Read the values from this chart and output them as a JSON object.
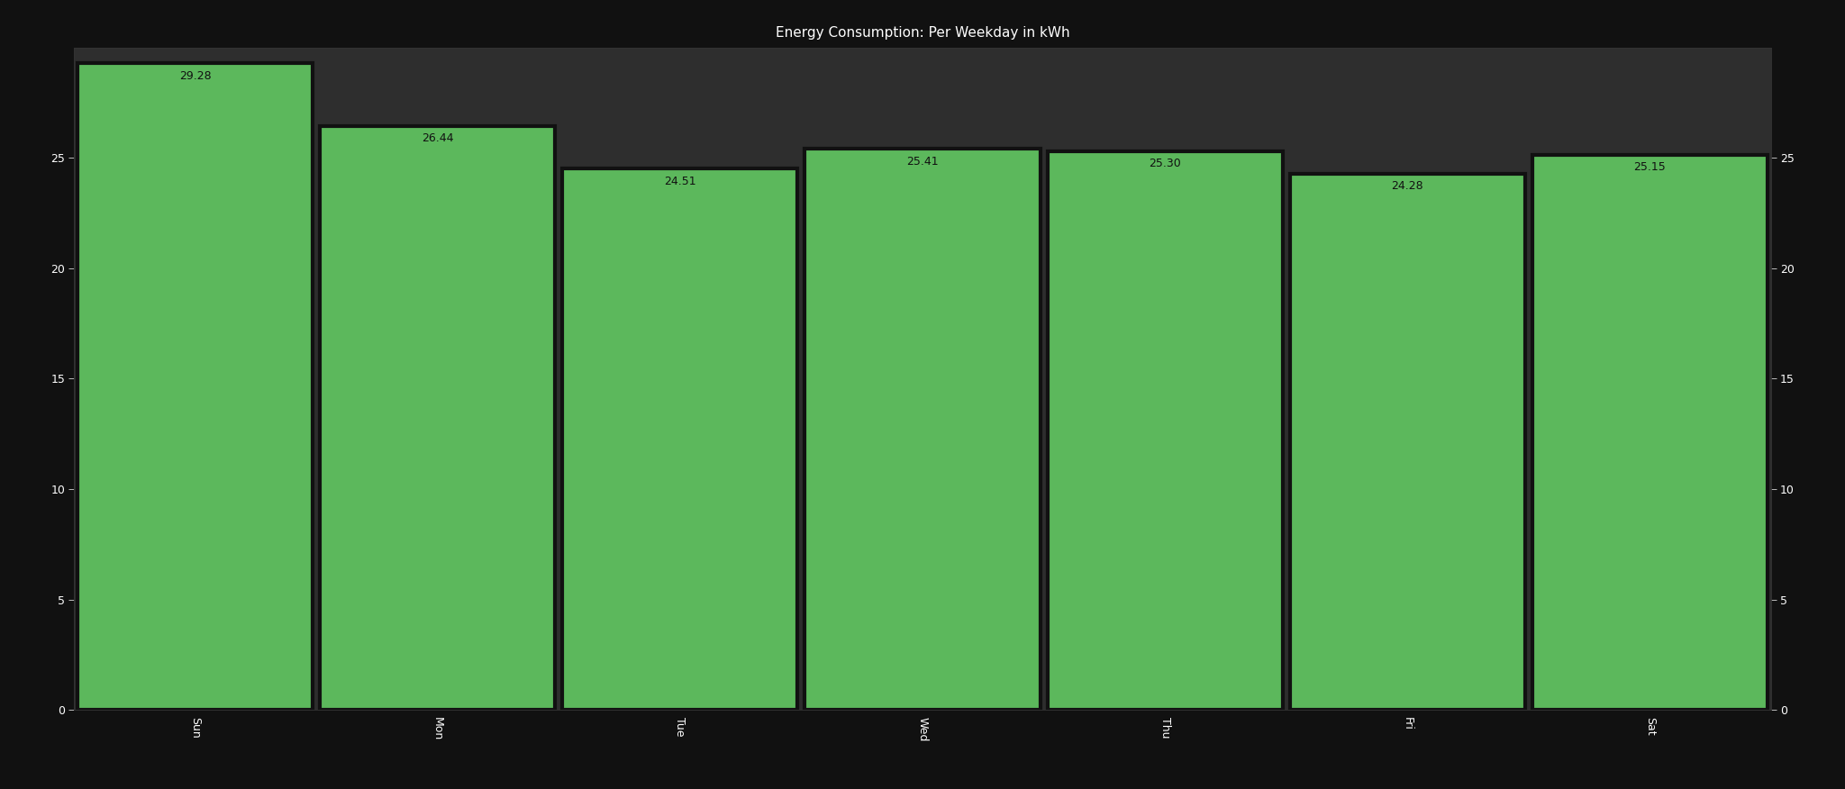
{
  "title": "Energy Consumption: Per Weekday in kWh",
  "categories": [
    "Sun",
    "Mon",
    "Tue",
    "Wed",
    "Thu",
    "Fri",
    "Sat"
  ],
  "values": [
    29.28,
    26.44,
    24.51,
    25.41,
    25.3,
    24.28,
    25.15
  ],
  "bar_color": "#5cb85c",
  "background_color": "#111111",
  "axes_bg_color": "#2e2e2e",
  "text_color": "#ffffff",
  "label_color": "#111111",
  "title_color": "#ffffff",
  "ylim": [
    0,
    30
  ],
  "yticks": [
    0,
    5,
    10,
    15,
    20,
    25
  ],
  "title_fontsize": 11,
  "tick_fontsize": 9,
  "label_fontsize": 9,
  "bar_width": 0.97,
  "spine_color": "#333333",
  "gap_color": "#111111"
}
